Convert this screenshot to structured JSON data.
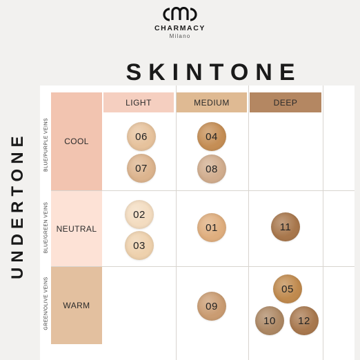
{
  "brand": {
    "name": "CHARMACY",
    "city": "Milano",
    "mark": "CMC"
  },
  "title": "SKINTONE",
  "side_title": "UNDERTONE",
  "columns": [
    {
      "label": "LIGHT",
      "color": "#f5cfc0"
    },
    {
      "label": "MEDIUM",
      "color": "#dfba93"
    },
    {
      "label": "DEEP",
      "color": "#b48762"
    }
  ],
  "rows": [
    {
      "label": "COOL",
      "veins": "BLUE/PURPLE VEINS",
      "color": "#f2c4b0"
    },
    {
      "label": "NEUTRAL",
      "veins": "BLUE/GREEN VEINS",
      "color": "#fde2d6"
    },
    {
      "label": "WARM",
      "veins": "GREEN/OLIVE VEINS",
      "color": "#e3c09f"
    }
  ],
  "swatches": [
    {
      "shade": "06",
      "row": "COOL",
      "column": "LIGHT",
      "color": "#e6c29c"
    },
    {
      "shade": "07",
      "row": "COOL",
      "column": "LIGHT",
      "color": "#dcb48e"
    },
    {
      "shade": "04",
      "row": "COOL",
      "column": "MEDIUM",
      "color": "#c58e55"
    },
    {
      "shade": "08",
      "row": "COOL",
      "column": "MEDIUM",
      "color": "#d1ad8e"
    },
    {
      "shade": "02",
      "row": "NEUTRAL",
      "column": "LIGHT",
      "color": "#f3dcc0"
    },
    {
      "shade": "03",
      "row": "NEUTRAL",
      "column": "LIGHT",
      "color": "#eed1ad"
    },
    {
      "shade": "01",
      "row": "NEUTRAL",
      "column": "MEDIUM",
      "color": "#dfae7e"
    },
    {
      "shade": "11",
      "row": "NEUTRAL",
      "column": "DEEP",
      "color": "#a8774c"
    },
    {
      "shade": "09",
      "row": "WARM",
      "column": "MEDIUM",
      "color": "#ca9c72"
    },
    {
      "shade": "05",
      "row": "WARM",
      "column": "DEEP",
      "color": "#c08a4e"
    },
    {
      "shade": "10",
      "row": "WARM",
      "column": "DEEP",
      "color": "#ad8864"
    },
    {
      "shade": "12",
      "row": "WARM",
      "column": "DEEP",
      "color": "#a8784e"
    }
  ]
}
